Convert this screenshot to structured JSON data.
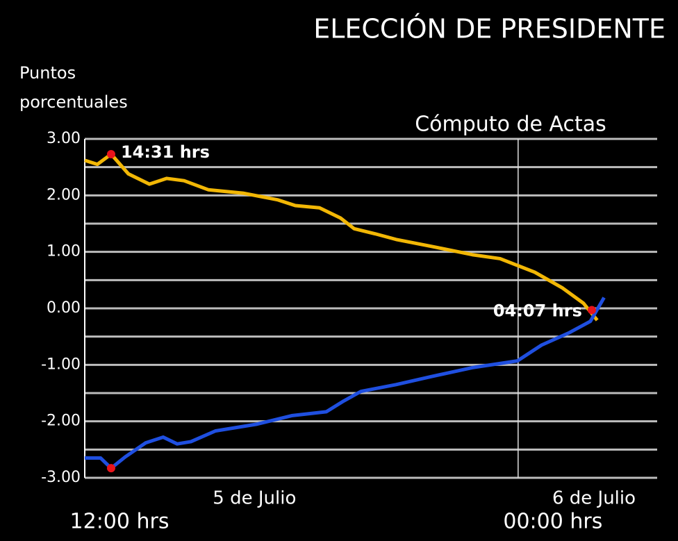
{
  "chart_data": {
    "type": "line",
    "title": "ELECCIÓN DE PRESIDENTE",
    "subtitle": "Cómputo de Actas",
    "ylabel": [
      "Puntos",
      "porcentuales"
    ],
    "xlim": [
      0,
      15.85
    ],
    "xticks": [
      {
        "value": 0,
        "label": "12:00 hrs"
      },
      {
        "value": 12,
        "label": "00:00 hrs"
      }
    ],
    "date_labels": [
      {
        "value": 4.7,
        "label": "5 de Julio"
      },
      {
        "value": 14.1,
        "label": "6 de Julio"
      }
    ],
    "ylim": [
      -3,
      3
    ],
    "yticks": [
      {
        "value": 3,
        "label": "3.00"
      },
      {
        "value": 2,
        "label": "2.00"
      },
      {
        "value": 1,
        "label": "1.00"
      },
      {
        "value": 0,
        "label": "0.00"
      },
      {
        "value": -1,
        "label": "-1.00"
      },
      {
        "value": -2,
        "label": "-2.00"
      },
      {
        "value": -3,
        "label": "-3.00"
      }
    ],
    "minor_yticks": [
      2.5,
      1.5,
      0.5,
      -0.5,
      -1.5,
      -2.5
    ],
    "grid": true,
    "series": [
      {
        "name": "Amarillo",
        "color": "#f2b705",
        "x": [
          0,
          0.35,
          0.73,
          1.21,
          1.79,
          2.27,
          2.75,
          3.42,
          4.38,
          5.35,
          5.83,
          6.5,
          7.08,
          7.46,
          8.04,
          8.62,
          9.58,
          10.73,
          11.5,
          12.46,
          13.23,
          13.81,
          14.19
        ],
        "values": [
          2.62,
          2.55,
          2.73,
          2.38,
          2.2,
          2.3,
          2.26,
          2.1,
          2.04,
          1.92,
          1.82,
          1.78,
          1.6,
          1.41,
          1.32,
          1.22,
          1.1,
          0.95,
          0.88,
          0.64,
          0.36,
          0.09,
          -0.21
        ]
      },
      {
        "name": "Azul",
        "color": "#1f4fe0",
        "x": [
          0,
          0.44,
          0.73,
          1.12,
          1.69,
          2.17,
          2.56,
          2.94,
          3.62,
          4.77,
          5.73,
          6.69,
          7.17,
          7.65,
          8.62,
          9.58,
          10.73,
          11.98,
          12.65,
          13.42,
          14,
          14.38
        ],
        "values": [
          -2.65,
          -2.65,
          -2.83,
          -2.63,
          -2.38,
          -2.28,
          -2.4,
          -2.36,
          -2.17,
          -2.05,
          -1.9,
          -1.83,
          -1.64,
          -1.47,
          -1.35,
          -1.21,
          -1.05,
          -0.93,
          -0.65,
          -0.43,
          -0.23,
          0.19
        ]
      }
    ],
    "annotations": [
      {
        "x": 0.73,
        "y": 2.73,
        "label": "14:31 hrs"
      },
      {
        "x": 0.73,
        "y": -2.83
      },
      {
        "x": 14.04,
        "y": -0.03,
        "label": "04:07 hrs"
      }
    ],
    "marker_color": "#e8141b"
  }
}
